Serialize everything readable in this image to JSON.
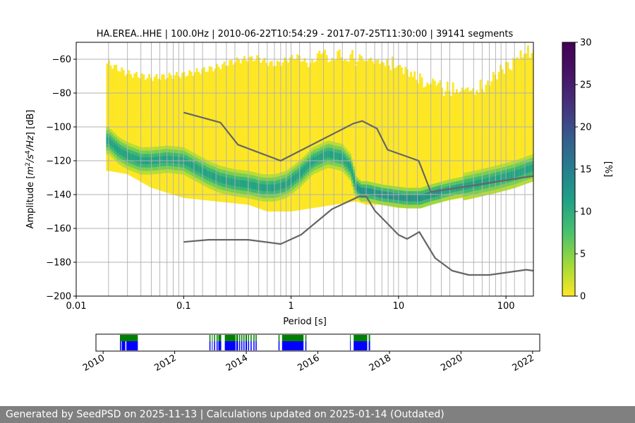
{
  "chart_data": [
    {
      "type": "heatmap",
      "title": "HA.EREA..HHE | 100.0Hz | 2010-06-22T10:54:29 - 2017-07-25T11:30:00 | 39141 segments",
      "xlabel": "Period [s]",
      "ylabel_parts": [
        "Amplitude [",
        "m",
        "2",
        "/",
        "s",
        "4",
        "/",
        "Hz",
        "] [dB]"
      ],
      "xscale": "log",
      "xlim": [
        0.01,
        180
      ],
      "ylim": [
        -200,
        -50
      ],
      "x_ticks": [
        0.01,
        0.1,
        1,
        10,
        100
      ],
      "x_tick_labels": [
        "0.01",
        "0.1",
        "1",
        "10",
        "100"
      ],
      "y_ticks": [
        -200,
        -180,
        -160,
        -140,
        -120,
        -100,
        -80,
        -60
      ],
      "y_tick_labels": [
        "−200",
        "−180",
        "−160",
        "−140",
        "−120",
        "−100",
        "−80",
        "−60"
      ],
      "period_grid": [
        0.02,
        0.03,
        0.04,
        0.05,
        0.06,
        0.07,
        0.08,
        0.09,
        0.1,
        0.125,
        0.15,
        0.2,
        0.25,
        0.3,
        0.4,
        0.5,
        0.6,
        0.7,
        0.8,
        0.9,
        1,
        1.2,
        1.5,
        2,
        2.5,
        3,
        4,
        5,
        6,
        7,
        8,
        9,
        10,
        12,
        15,
        20,
        25,
        30,
        40,
        50,
        60,
        70,
        80,
        90,
        100,
        120,
        150
      ],
      "mode_curve": {
        "period": [
          0.02,
          0.025,
          0.03,
          0.04,
          0.05,
          0.07,
          0.1,
          0.13,
          0.17,
          0.22,
          0.3,
          0.4,
          0.55,
          0.7,
          0.9,
          1.2,
          1.6,
          2.2,
          3,
          3.6,
          4,
          4.5,
          5,
          6,
          7,
          9,
          12,
          16,
          20,
          30,
          50,
          80,
          120,
          180
        ],
        "db": [
          -108,
          -114,
          -117,
          -120,
          -120,
          -119,
          -120,
          -124,
          -128,
          -131,
          -133,
          -134,
          -136,
          -136,
          -134,
          -128,
          -120,
          -116,
          -118,
          -124,
          -135,
          -138,
          -138,
          -139,
          -140,
          -141,
          -142,
          -142,
          -140,
          -137,
          -134,
          -131,
          -128,
          -124
        ]
      },
      "upper_envelope": {
        "period": [
          0.02,
          0.03,
          0.05,
          0.1,
          0.2,
          0.5,
          1,
          2,
          5,
          10,
          20,
          50,
          100,
          180
        ],
        "db": [
          -63,
          -69,
          -72,
          -71,
          -68,
          -58,
          -62,
          -58,
          -60,
          -64,
          -76,
          -80,
          -64,
          -55
        ]
      },
      "lower_envelope": {
        "period": [
          0.02,
          0.03,
          0.05,
          0.1,
          0.2,
          0.4,
          0.6,
          1,
          2,
          4,
          5,
          7,
          10,
          15,
          20,
          50,
          100,
          180
        ],
        "db": [
          -126,
          -128,
          -136,
          -142,
          -144,
          -146,
          -150,
          -150,
          -147,
          -144,
          -146,
          -146,
          -148,
          -148,
          -145,
          -141,
          -134,
          -132
        ]
      },
      "model_curves": [
        {
          "name": "upper model",
          "period": [
            0.1,
            0.22,
            0.32,
            0.8,
            3.8,
            4.6,
            6.3,
            7.9,
            15.4,
            20,
            180
          ],
          "db": [
            -91.5,
            -97.4,
            -110.5,
            -120,
            -98,
            -96.5,
            -101,
            -113.5,
            -120,
            -138.5,
            -129
          ]
        },
        {
          "name": "lower model",
          "period": [
            0.1,
            0.17,
            0.4,
            0.8,
            1.24,
            2.4,
            4.3,
            5,
            6,
            10,
            12,
            15.6,
            21.9,
            31.6,
            45,
            70,
            154,
            180
          ],
          "db": [
            -168,
            -166.7,
            -166.7,
            -169.2,
            -163.7,
            -148.6,
            -141.1,
            -141.1,
            -149.4,
            -163.8,
            -166.2,
            -162.1,
            -177.5,
            -185,
            -187.5,
            -187.5,
            -184.4,
            -185
          ]
        }
      ],
      "colorbar": {
        "label": "[%]",
        "range": [
          0,
          30
        ],
        "ticks": [
          0,
          5,
          10,
          15,
          20,
          25,
          30
        ],
        "tick_labels": [
          "0",
          "5",
          "10",
          "15",
          "20",
          "25",
          "30"
        ],
        "colormap": "viridis"
      }
    },
    {
      "type": "timeline",
      "xlim": [
        2009.8,
        2022.2
      ],
      "tick_years": [
        2010,
        2012,
        2014,
        2016,
        2018,
        2020,
        2022
      ],
      "tick_labels": [
        "2010",
        "2012",
        "2014",
        "2016",
        "2018",
        "2020",
        "2022"
      ],
      "series": [
        {
          "name": "availability",
          "color": "#008000",
          "spans": [
            [
              2010.47,
              2010.97
            ],
            [
              2012.97,
              2013.0
            ],
            [
              2013.04,
              2013.06
            ],
            [
              2013.1,
              2013.13
            ],
            [
              2013.17,
              2013.2
            ],
            [
              2013.22,
              2013.3
            ],
            [
              2013.4,
              2013.7
            ],
            [
              2013.72,
              2013.77
            ],
            [
              2013.8,
              2013.83
            ],
            [
              2013.86,
              2013.89
            ],
            [
              2013.92,
              2013.95
            ],
            [
              2013.98,
              2014.02
            ],
            [
              2014.05,
              2014.08
            ],
            [
              2014.12,
              2014.15
            ],
            [
              2014.2,
              2014.23
            ],
            [
              2014.26,
              2014.29
            ],
            [
              2014.9,
              2014.93
            ],
            [
              2015.0,
              2015.6
            ],
            [
              2015.65,
              2015.68
            ],
            [
              2016.9,
              2016.92
            ],
            [
              2017.0,
              2017.38
            ],
            [
              2017.42,
              2017.46
            ]
          ]
        },
        {
          "name": "segments",
          "color": "#0000ff",
          "spans": [
            [
              2010.47,
              2010.5
            ],
            [
              2010.52,
              2010.62
            ],
            [
              2010.65,
              2010.97
            ],
            [
              2012.97,
              2013.0
            ],
            [
              2013.04,
              2013.06
            ],
            [
              2013.1,
              2013.13
            ],
            [
              2013.17,
              2013.2
            ],
            [
              2013.22,
              2013.3
            ],
            [
              2013.4,
              2013.7
            ],
            [
              2013.72,
              2013.77
            ],
            [
              2013.8,
              2013.83
            ],
            [
              2013.86,
              2013.89
            ],
            [
              2013.92,
              2013.95
            ],
            [
              2013.98,
              2014.02
            ],
            [
              2014.05,
              2014.08
            ],
            [
              2014.12,
              2014.15
            ],
            [
              2014.2,
              2014.23
            ],
            [
              2014.26,
              2014.29
            ],
            [
              2014.9,
              2014.93
            ],
            [
              2015.0,
              2015.6
            ],
            [
              2015.65,
              2015.68
            ],
            [
              2016.9,
              2016.92
            ],
            [
              2017.0,
              2017.38
            ],
            [
              2017.42,
              2017.46
            ]
          ]
        }
      ]
    }
  ],
  "footer": {
    "text": "Generated by SeedPSD on 2025-11-13 | Calculations updated on 2025-01-14 (Outdated)"
  }
}
